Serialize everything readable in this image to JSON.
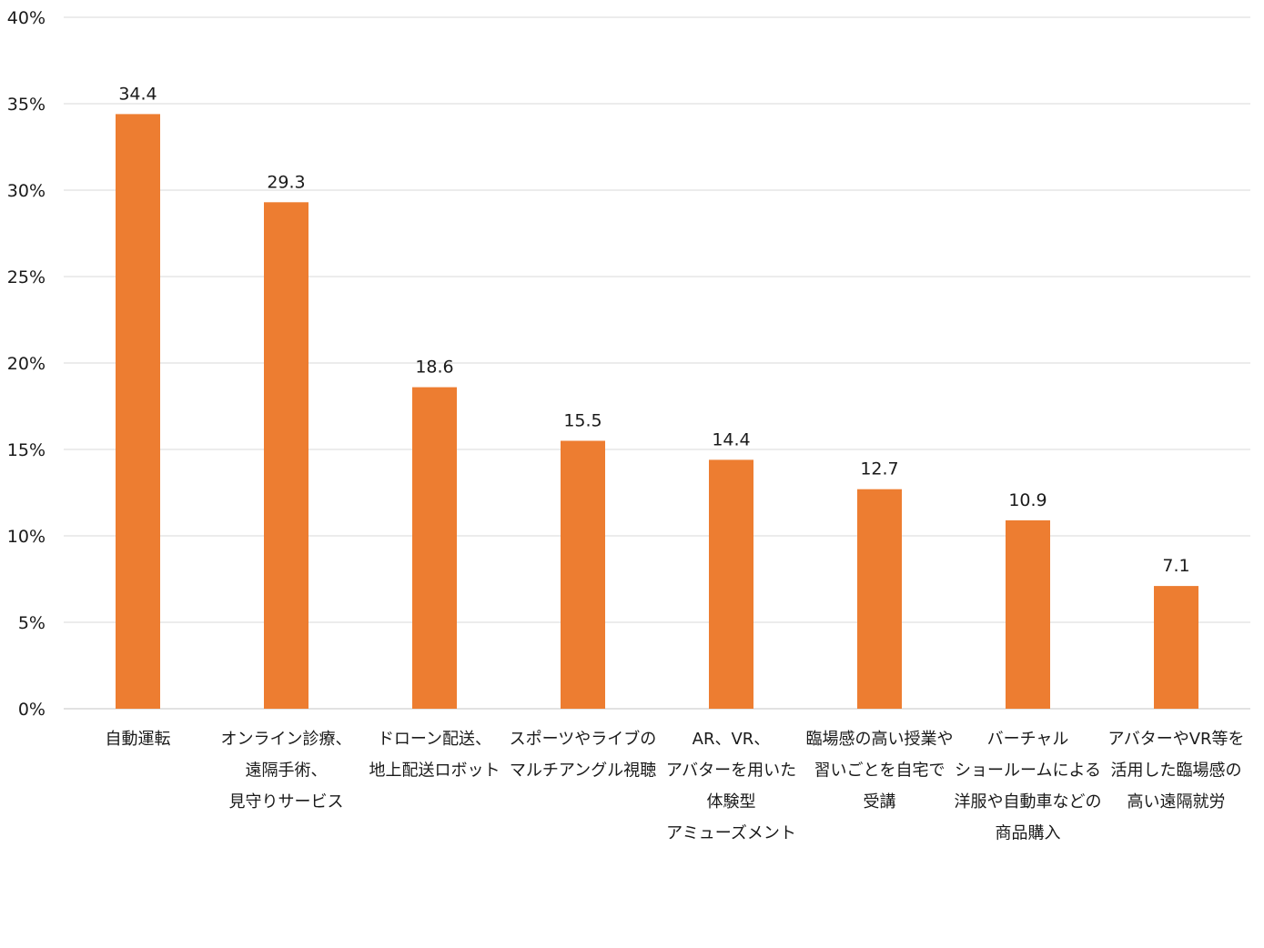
{
  "chart_data": {
    "type": "bar",
    "title": "",
    "xlabel": "",
    "ylabel": "",
    "ylim": [
      0,
      40
    ],
    "y_ticks": [
      "0%",
      "5%",
      "10%",
      "15%",
      "20%",
      "25%",
      "30%",
      "35%",
      "40%"
    ],
    "y_tick_values": [
      0,
      5,
      10,
      15,
      20,
      25,
      30,
      35,
      40
    ],
    "grid": true,
    "legend": "none",
    "bar_color": "#ED7D31",
    "categories": [
      [
        "自動運転"
      ],
      [
        "オンライン診療、",
        "遠隔手術、",
        "見守りサービス"
      ],
      [
        "ドローン配送、",
        "地上配送ロボット"
      ],
      [
        "スポーツやライブの",
        "マルチアングル視聴"
      ],
      [
        "AR、VR、",
        "アバターを用いた",
        "体験型",
        "アミューズメント"
      ],
      [
        "臨場感の高い授業や",
        "習いごとを自宅で",
        "受講"
      ],
      [
        "バーチャル",
        "ショールームによる",
        "洋服や自動車などの",
        "商品購入"
      ],
      [
        "アバターやVR等を",
        "活用した臨場感の",
        "高い遠隔就労"
      ]
    ],
    "values": [
      34.4,
      29.3,
      18.6,
      15.5,
      14.4,
      12.7,
      10.9,
      7.1
    ],
    "value_labels": [
      "34.4",
      "29.3",
      "18.6",
      "15.5",
      "14.4",
      "12.7",
      "10.9",
      "7.1"
    ]
  }
}
